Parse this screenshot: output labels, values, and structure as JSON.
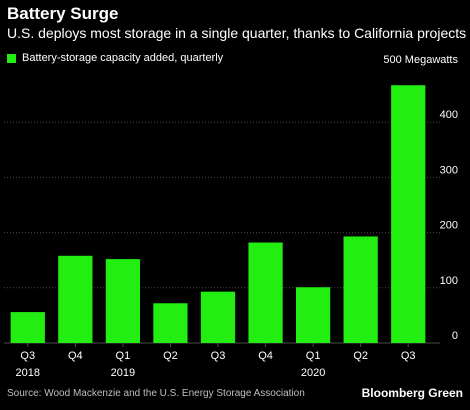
{
  "header": {
    "title": "Battery Surge",
    "subtitle": "U.S. deploys most storage in a single quarter, thanks to California projects"
  },
  "legend": {
    "label": "Battery-storage capacity added, quarterly"
  },
  "footer": {
    "source": "Source: Wood Mackenzie and the U.S. Energy Storage Association",
    "brand": "Bloomberg Green"
  },
  "colors": {
    "bar": "#22ee11",
    "background": "#000000",
    "grid": "#4a4a4a",
    "tick_text": "#ffffff"
  },
  "chart_data": {
    "type": "bar",
    "title": "Battery Surge",
    "subtitle": "U.S. deploys most storage in a single quarter, thanks to California projects",
    "ylabel": "",
    "xlabel": "",
    "y_unit_label": "500 Megawatts",
    "ylim": [
      0,
      500
    ],
    "yticks": [
      0,
      100,
      200,
      300,
      400
    ],
    "grid": true,
    "legend_position": "top-left",
    "categories": [
      {
        "label": "Q3",
        "year": "2018"
      },
      {
        "label": "Q4",
        "year": ""
      },
      {
        "label": "Q1",
        "year": "2019"
      },
      {
        "label": "Q2",
        "year": ""
      },
      {
        "label": "Q3",
        "year": ""
      },
      {
        "label": "Q4",
        "year": ""
      },
      {
        "label": "Q1",
        "year": "2020"
      },
      {
        "label": "Q2",
        "year": ""
      },
      {
        "label": "Q3",
        "year": ""
      }
    ],
    "series": [
      {
        "name": "Battery-storage capacity added, quarterly",
        "values": [
          56,
          158,
          152,
          72,
          93,
          182,
          101,
          193,
          467
        ]
      }
    ]
  }
}
